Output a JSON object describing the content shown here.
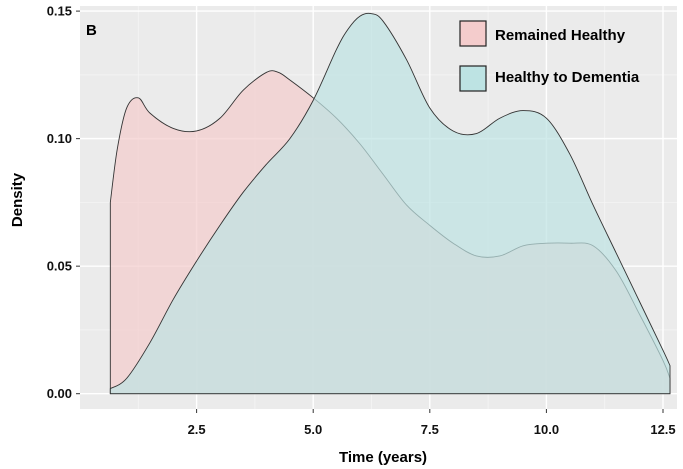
{
  "chart_data": {
    "type": "area",
    "panel_label": "B",
    "xlabel": "Time (years)",
    "ylabel": "Density",
    "xlim": [
      0.0,
      12.8
    ],
    "ylim": [
      -0.006,
      0.152
    ],
    "x_ticks": [
      2.5,
      5.0,
      7.5,
      10.0,
      12.5
    ],
    "x_tick_labels": [
      "2.5",
      "5.0",
      "7.5",
      "10.0",
      "12.5"
    ],
    "y_ticks": [
      0.0,
      0.05,
      0.1,
      0.15
    ],
    "y_tick_labels": [
      "0.00",
      "0.05",
      "0.10",
      "0.15"
    ],
    "grid": true,
    "legend_position": "top-right",
    "series": [
      {
        "name": "Remained Healthy",
        "color": "#f4cccc",
        "x": [
          0.65,
          0.8,
          1.0,
          1.25,
          1.5,
          2.0,
          2.5,
          3.0,
          3.5,
          4.0,
          4.25,
          4.5,
          5.0,
          5.5,
          6.0,
          6.5,
          7.0,
          7.5,
          8.0,
          8.5,
          9.0,
          9.5,
          10.0,
          10.5,
          11.0,
          11.5,
          12.0,
          12.5,
          12.65
        ],
        "values": [
          0.075,
          0.096,
          0.112,
          0.116,
          0.11,
          0.104,
          0.103,
          0.108,
          0.119,
          0.126,
          0.126,
          0.123,
          0.116,
          0.108,
          0.098,
          0.086,
          0.074,
          0.066,
          0.059,
          0.054,
          0.054,
          0.058,
          0.059,
          0.059,
          0.058,
          0.048,
          0.031,
          0.013,
          0.006
        ]
      },
      {
        "name": "Healthy to Dementia",
        "color": "#bde3e3",
        "x": [
          0.65,
          1.0,
          1.5,
          2.0,
          2.5,
          3.0,
          3.5,
          4.0,
          4.5,
          5.0,
          5.5,
          5.75,
          6.0,
          6.25,
          6.5,
          7.0,
          7.5,
          8.0,
          8.5,
          9.0,
          9.5,
          10.0,
          10.5,
          11.0,
          11.5,
          12.0,
          12.5,
          12.65
        ],
        "values": [
          0.002,
          0.006,
          0.02,
          0.037,
          0.052,
          0.066,
          0.079,
          0.09,
          0.1,
          0.115,
          0.135,
          0.143,
          0.148,
          0.149,
          0.146,
          0.131,
          0.112,
          0.103,
          0.102,
          0.108,
          0.111,
          0.108,
          0.094,
          0.074,
          0.055,
          0.036,
          0.017,
          0.011
        ]
      }
    ]
  }
}
